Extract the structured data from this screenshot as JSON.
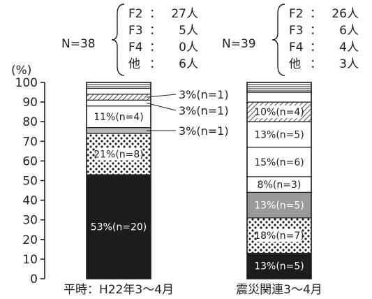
{
  "chart_data": {
    "type": "bar",
    "stacked": true,
    "y_unit_label": "(%)",
    "ylim": [
      0,
      100
    ],
    "yticks": [
      0,
      10,
      20,
      30,
      40,
      50,
      60,
      70,
      80,
      90,
      100
    ],
    "grid": false,
    "categories": [
      "平時：H22年3～4月",
      "震災関連3～4月"
    ],
    "group_summaries": [
      {
        "n_label": "N=38",
        "rows": [
          {
            "label": "F2",
            "sep": "：",
            "value": "27人"
          },
          {
            "label": "F3",
            "sep": "：",
            "value": "5人"
          },
          {
            "label": "F4",
            "sep": "：",
            "value": "0人"
          },
          {
            "label": "他",
            "sep": "：",
            "value": "6人"
          }
        ]
      },
      {
        "n_label": "N=39",
        "rows": [
          {
            "label": "F2",
            "sep": "：",
            "value": "26人"
          },
          {
            "label": "F3",
            "sep": "：",
            "value": "6人"
          },
          {
            "label": "F4",
            "sep": "：",
            "value": "4人"
          },
          {
            "label": "他",
            "sep": "：",
            "value": "3人"
          }
        ]
      }
    ],
    "bars": [
      {
        "segments": [
          {
            "value": 53,
            "fill": "black",
            "label": "53%(n=20)"
          },
          {
            "value": 21,
            "fill": "dots",
            "label": "21%(n=8)"
          },
          {
            "value": 3,
            "fill": "lightgray",
            "label": "",
            "callout": "3%(n=1)"
          },
          {
            "value": 11,
            "fill": "white",
            "label": "11%(n=4)"
          },
          {
            "value": 3,
            "fill": "white",
            "label": "",
            "callout": "3%(n=1)"
          },
          {
            "value": 3,
            "fill": "diag",
            "label": "",
            "callout": "3%(n=1)"
          },
          {
            "value": 3,
            "fill": "white",
            "label": ""
          },
          {
            "value": 3,
            "fill": "hlines",
            "label": ""
          }
        ]
      },
      {
        "segments": [
          {
            "value": 13,
            "fill": "black",
            "label": "13%(n=5)"
          },
          {
            "value": 18,
            "fill": "dots",
            "label": "18%(n=7)"
          },
          {
            "value": 13,
            "fill": "midgray",
            "label": "13%(n=5)"
          },
          {
            "value": 8,
            "fill": "white",
            "label": "8%(n=3)"
          },
          {
            "value": 15,
            "fill": "white",
            "label": "15%(n=6)"
          },
          {
            "value": 13,
            "fill": "white",
            "label": "13%(n=5)"
          },
          {
            "value": 10,
            "fill": "diag",
            "label": "10%(n=4)"
          },
          {
            "value": 5,
            "fill": "white",
            "label": ""
          },
          {
            "value": 5,
            "fill": "hlines",
            "label": ""
          }
        ]
      }
    ],
    "colors": {
      "black": "#1c1c1c",
      "lightgray": "#b8b8b8",
      "midgray": "#9a9a9a",
      "white": "#ffffff",
      "ink": "#222222"
    }
  }
}
